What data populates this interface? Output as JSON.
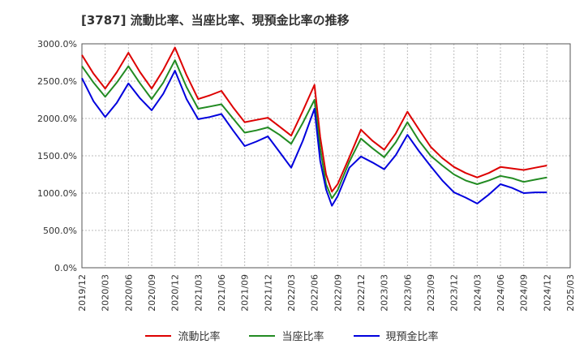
{
  "chart_data": {
    "type": "line",
    "title": "[3787]  流動比率、当座比率、現預金比率の推移",
    "xlabel": "",
    "ylabel": "",
    "ylim": [
      0,
      3000
    ],
    "y_ticks": [
      "0.0%",
      "500.0%",
      "1000.0%",
      "1500.0%",
      "2000.0%",
      "2500.0%",
      "3000.0%"
    ],
    "y_tick_values": [
      0,
      500,
      1000,
      1500,
      2000,
      2500,
      3000
    ],
    "categories": [
      "2019/12",
      "2020/03",
      "2020/06",
      "2020/09",
      "2020/12",
      "2021/03",
      "2021/06",
      "2021/09",
      "2021/12",
      "2022/03",
      "2022/06",
      "2022/09",
      "2022/12",
      "2023/03",
      "2023/06",
      "2023/09",
      "2023/12",
      "2024/03",
      "2024/06",
      "2024/09",
      "2024/12",
      "2025/03"
    ],
    "grid": true,
    "legend_position": "bottom",
    "series": [
      {
        "name": "流動比率",
        "color": "#dd0000",
        "x": [
          0,
          0.5,
          1,
          1.5,
          2,
          2.5,
          3,
          3.5,
          4,
          4.5,
          5,
          5.5,
          6,
          6.5,
          7,
          7.5,
          8,
          8.5,
          9,
          9.5,
          10,
          10.25,
          10.5,
          10.75,
          11,
          11.25,
          11.5,
          12,
          12.5,
          13,
          13.5,
          14,
          14.5,
          15,
          15.5,
          16,
          16.5,
          17,
          17.5,
          18,
          18.5,
          19,
          19.5,
          20
        ],
        "values": [
          2850,
          2600,
          2400,
          2620,
          2880,
          2620,
          2400,
          2650,
          2950,
          2580,
          2260,
          2310,
          2370,
          2150,
          1950,
          1980,
          2010,
          1890,
          1770,
          2100,
          2450,
          1750,
          1250,
          1020,
          1120,
          1300,
          1480,
          1850,
          1700,
          1580,
          1800,
          2090,
          1850,
          1620,
          1470,
          1350,
          1270,
          1210,
          1270,
          1350,
          1330,
          1310,
          1340,
          1370
        ]
      },
      {
        "name": "当座比率",
        "color": "#228b22",
        "x": [
          0,
          0.5,
          1,
          1.5,
          2,
          2.5,
          3,
          3.5,
          4,
          4.5,
          5,
          5.5,
          6,
          6.5,
          7,
          7.5,
          8,
          8.5,
          9,
          9.5,
          10,
          10.25,
          10.5,
          10.75,
          11,
          11.25,
          11.5,
          12,
          12.5,
          13,
          13.5,
          14,
          14.5,
          15,
          15.5,
          16,
          16.5,
          17,
          17.5,
          18,
          18.5,
          19,
          19.5,
          20
        ],
        "values": [
          2700,
          2480,
          2290,
          2480,
          2700,
          2470,
          2260,
          2480,
          2780,
          2420,
          2130,
          2160,
          2190,
          2000,
          1810,
          1840,
          1880,
          1780,
          1660,
          1940,
          2250,
          1600,
          1120,
          930,
          1040,
          1230,
          1420,
          1730,
          1600,
          1480,
          1680,
          1950,
          1700,
          1500,
          1370,
          1250,
          1170,
          1120,
          1170,
          1230,
          1200,
          1150,
          1180,
          1210
        ]
      },
      {
        "name": "現預金比率",
        "color": "#0000dd",
        "x": [
          0,
          0.5,
          1,
          1.5,
          2,
          2.5,
          3,
          3.5,
          4,
          4.5,
          5,
          5.5,
          6,
          6.5,
          7,
          7.5,
          8,
          8.5,
          9,
          9.5,
          10,
          10.25,
          10.5,
          10.75,
          11,
          11.25,
          11.5,
          12,
          12.5,
          13,
          13.5,
          14,
          14.5,
          15,
          15.5,
          16,
          16.5,
          17,
          17.5,
          18,
          18.5,
          19,
          19.5,
          20
        ],
        "values": [
          2540,
          2230,
          2020,
          2210,
          2470,
          2270,
          2110,
          2330,
          2640,
          2260,
          1990,
          2020,
          2060,
          1840,
          1630,
          1690,
          1760,
          1550,
          1340,
          1700,
          2130,
          1430,
          1050,
          830,
          960,
          1150,
          1340,
          1490,
          1410,
          1320,
          1510,
          1780,
          1560,
          1360,
          1170,
          1010,
          940,
          860,
          980,
          1120,
          1070,
          1000,
          1010,
          1010
        ]
      }
    ]
  }
}
